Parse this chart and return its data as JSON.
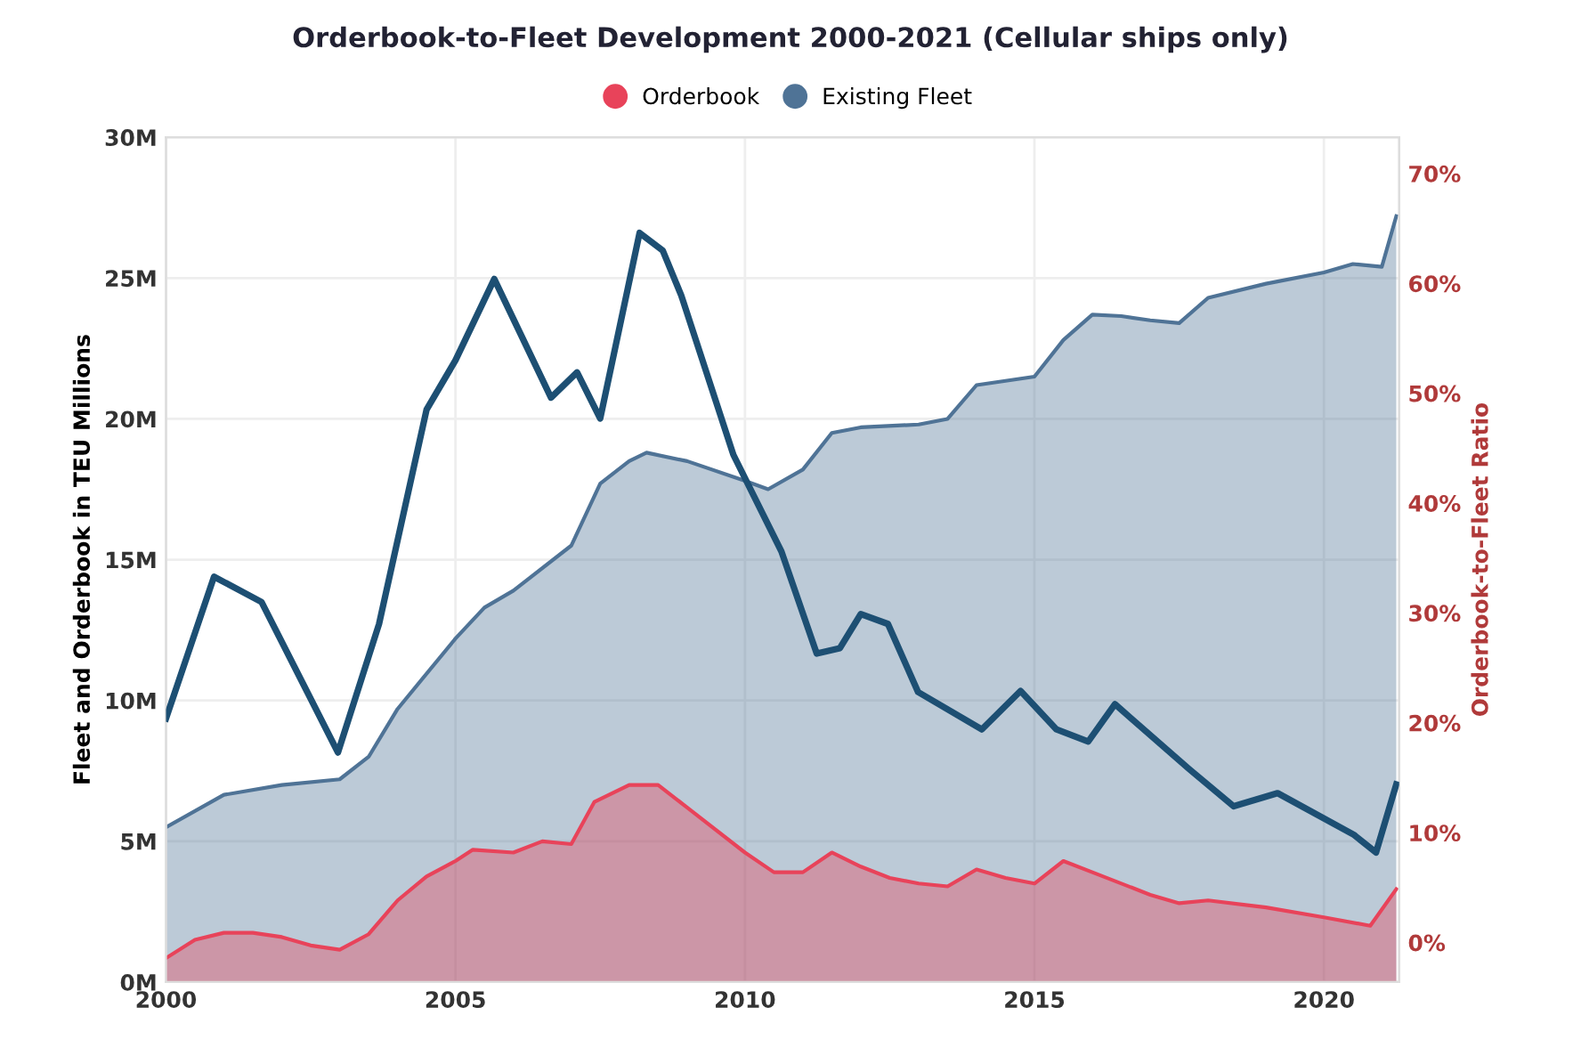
{
  "chart_data": {
    "type": "area",
    "title": "Orderbook-to-Fleet Development 2000-2021 (Cellular ships only)",
    "ylabel": "Fleet and Orderbook in TEU Millions",
    "y2label": "Orderbook-to-Fleet Ratio",
    "series": [
      {
        "name": "Existing Fleet",
        "color": "#4f7396",
        "x": [
          2000,
          2001,
          2002,
          2003,
          2003.5,
          2004,
          2005,
          2005.5,
          2006,
          2007,
          2007.5,
          2008,
          2008.3,
          2009,
          2010,
          2010.4,
          2011,
          2011.5,
          2012,
          2013,
          2013.5,
          2014,
          2015,
          2015.5,
          2016,
          2016.5,
          2017,
          2017.5,
          2018,
          2019,
          2020,
          2020.5,
          2021,
          2021.25
        ],
        "values": [
          5.5,
          6.65,
          7.0,
          7.2,
          8.0,
          9.7,
          12.2,
          13.3,
          13.9,
          15.5,
          17.7,
          18.5,
          18.8,
          18.5,
          17.8,
          17.5,
          18.2,
          19.5,
          19.7,
          19.8,
          20.0,
          21.2,
          21.5,
          22.8,
          23.7,
          23.65,
          23.5,
          23.4,
          24.3,
          24.8,
          25.2,
          25.5,
          25.4,
          27.2
        ]
      },
      {
        "name": "Orderbook",
        "color": "#e8435a",
        "x": [
          2000,
          2000.5,
          2001,
          2001.5,
          2002,
          2002.5,
          2003,
          2003.5,
          2004,
          2004.5,
          2005,
          2005.3,
          2006,
          2006.5,
          2007,
          2007.4,
          2008,
          2008.5,
          2009,
          2010,
          2010.5,
          2011,
          2011.5,
          2012,
          2012.5,
          2013,
          2013.5,
          2014,
          2014.5,
          2015,
          2015.5,
          2016,
          2017,
          2017.5,
          2018,
          2019,
          2020,
          2020.8,
          2021.25
        ],
        "values": [
          0.85,
          1.5,
          1.75,
          1.75,
          1.6,
          1.3,
          1.15,
          1.7,
          2.9,
          3.75,
          4.3,
          4.7,
          4.6,
          5.0,
          4.9,
          6.4,
          7.0,
          7.0,
          6.2,
          4.6,
          3.9,
          3.9,
          4.6,
          4.1,
          3.7,
          3.5,
          3.4,
          4.0,
          3.7,
          3.5,
          4.3,
          3.9,
          3.1,
          2.8,
          2.9,
          2.65,
          2.3,
          2.0,
          3.3
        ]
      },
      {
        "type": "line",
        "axis": "y2",
        "color": "#1d4f73",
        "x": [
          2000,
          2000.83,
          2001.65,
          2002.97,
          2003.68,
          2004.5,
          2005.0,
          2005.67,
          2006.65,
          2007.1,
          2007.5,
          2008.18,
          2008.58,
          2008.9,
          2009.8,
          2010.63,
          2011.24,
          2011.64,
          2012.0,
          2012.47,
          2012.99,
          2014.09,
          2014.76,
          2015.38,
          2015.93,
          2016.39,
          2017.67,
          2018.44,
          2019.2,
          2020.52,
          2020.9,
          2021.25
        ],
        "values": [
          20.4,
          33.3,
          31,
          17.3,
          29,
          48.5,
          53,
          60.4,
          49.6,
          51.9,
          47.7,
          64.6,
          63,
          58.9,
          44.4,
          35.6,
          26.3,
          26.8,
          29.9,
          29,
          22.8,
          19.4,
          22.9,
          19.4,
          18.3,
          21.7,
          15.8,
          12.4,
          13.6,
          9.8,
          8.2,
          14.4
        ]
      }
    ],
    "xlim": [
      2000,
      2021.3
    ],
    "xticks": [
      2000,
      2005,
      2010,
      2015,
      2020
    ],
    "ylim": [
      0,
      30
    ],
    "yticks": [
      {
        "value": 0,
        "label": "0M"
      },
      {
        "value": 5,
        "label": "5M"
      },
      {
        "value": 10,
        "label": "10M"
      },
      {
        "value": 15,
        "label": "15M"
      },
      {
        "value": 20,
        "label": "20M"
      },
      {
        "value": 25,
        "label": "25M"
      },
      {
        "value": 30,
        "label": "30M"
      }
    ],
    "y2lim": [
      -3.6,
      73.3
    ],
    "y2ticks": [
      {
        "value": 0,
        "label": "0%"
      },
      {
        "value": 10,
        "label": "10%"
      },
      {
        "value": 20,
        "label": "20%"
      },
      {
        "value": 30,
        "label": "30%"
      },
      {
        "value": 40,
        "label": "40%"
      },
      {
        "value": 50,
        "label": "50%"
      },
      {
        "value": 60,
        "label": "60%"
      },
      {
        "value": 70,
        "label": "70%"
      }
    ],
    "grid": true,
    "legend": "top",
    "marker": "none",
    "line_style": "solid"
  }
}
